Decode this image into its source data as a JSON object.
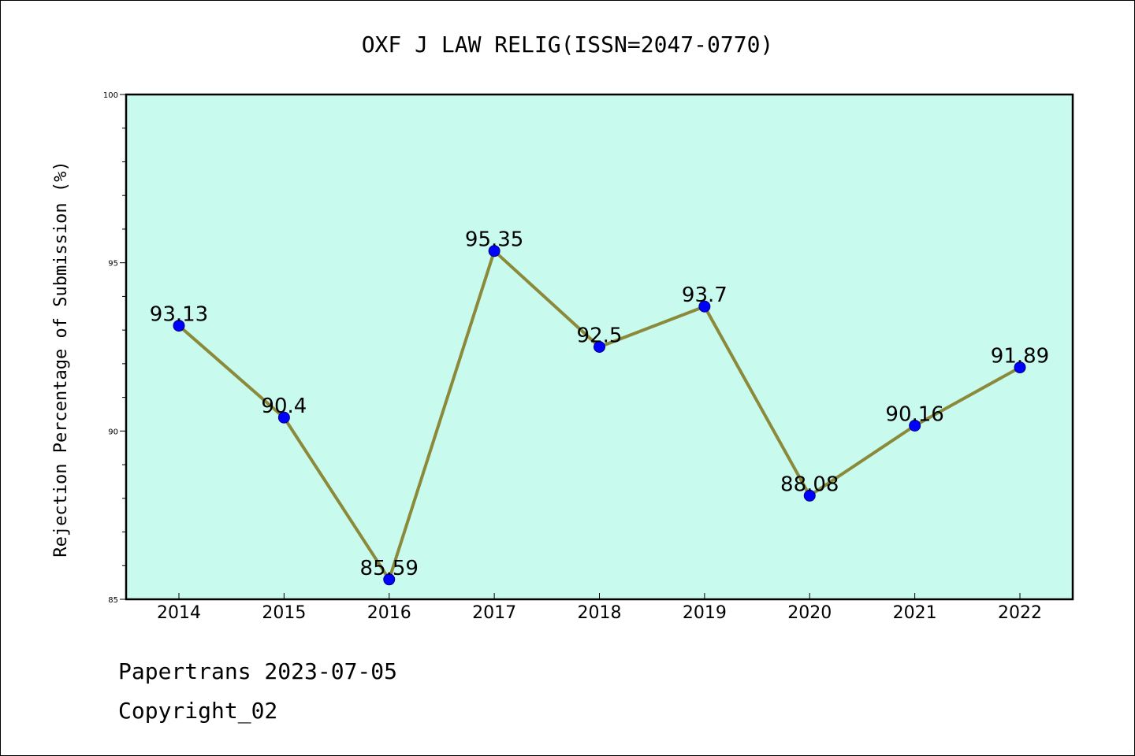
{
  "chart_data": {
    "type": "line",
    "title": "OXF J LAW RELIG(ISSN=2047-0770)",
    "xlabel": "",
    "ylabel": "Rejection Percentage of Submission (%)",
    "categories": [
      "2014",
      "2015",
      "2016",
      "2017",
      "2018",
      "2019",
      "2020",
      "2021",
      "2022"
    ],
    "values": [
      93.13,
      90.4,
      85.59,
      95.35,
      92.5,
      93.7,
      88.08,
      90.16,
      91.89
    ],
    "data_labels": [
      "93.13",
      "90.4",
      "85.59",
      "95.35",
      "92.5",
      "93.7",
      "88.08",
      "90.16",
      "91.89"
    ],
    "ylim": [
      85,
      100
    ],
    "yticks": [
      "85",
      "90",
      "95",
      "100"
    ],
    "grid": false,
    "colors": {
      "background": "#c8faee",
      "line": "#8b8a3a",
      "marker": "#0000ff"
    }
  },
  "footer": {
    "line1": "Papertrans 2023-07-05",
    "line2": "Copyright_02"
  }
}
